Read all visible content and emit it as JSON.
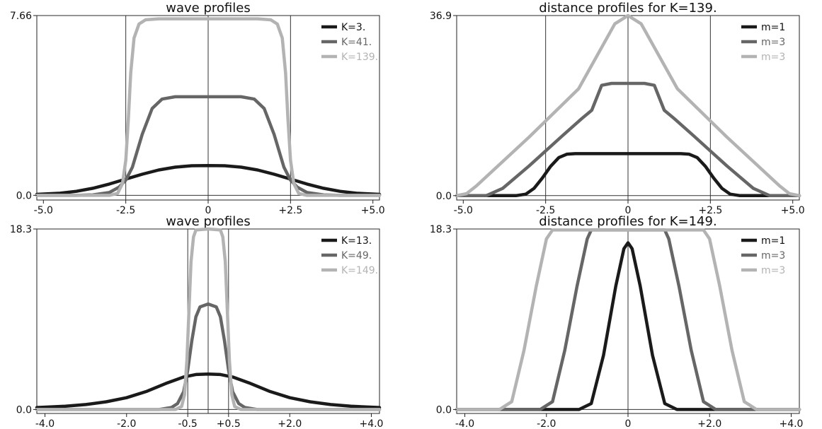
{
  "chart_data": [
    {
      "type": "line",
      "title": "wave profiles",
      "xlim": [
        -5.2,
        5.2
      ],
      "ylim": [
        -0.2,
        7.66
      ],
      "xticks": [
        -5.0,
        -2.5,
        0,
        2.5,
        5.0
      ],
      "xtick_labels": [
        "-5.0",
        "-2.5",
        "0",
        "+2.5",
        "+5.0"
      ],
      "yticks": [
        0.0,
        7.66
      ],
      "ytick_labels": [
        "0.0",
        "7.66"
      ],
      "vlines": [
        -2.5,
        0,
        2.5
      ],
      "legend_position": "top-right",
      "grid": false,
      "series": [
        {
          "name": "K=3.",
          "color": "#1a1a1a",
          "x": [
            -5.2,
            -4.5,
            -4.0,
            -3.5,
            -3.0,
            -2.5,
            -2.0,
            -1.5,
            -1.0,
            -0.5,
            0,
            0.5,
            1.0,
            1.5,
            2.0,
            2.5,
            3.0,
            3.5,
            4.0,
            4.5,
            5.2
          ],
          "y": [
            0.04,
            0.09,
            0.17,
            0.3,
            0.48,
            0.69,
            0.9,
            1.08,
            1.2,
            1.26,
            1.27,
            1.26,
            1.2,
            1.08,
            0.9,
            0.69,
            0.48,
            0.3,
            0.17,
            0.09,
            0.04
          ]
        },
        {
          "name": "K=41.",
          "color": "#666666",
          "x": [
            -5.2,
            -4.0,
            -3.5,
            -3.0,
            -2.7,
            -2.5,
            -2.3,
            -2.0,
            -1.7,
            -1.4,
            -1.0,
            0,
            1.0,
            1.4,
            1.7,
            2.0,
            2.3,
            2.5,
            2.7,
            3.0,
            3.5,
            4.0,
            5.2
          ],
          "y": [
            0.0,
            0.0,
            0.02,
            0.12,
            0.35,
            0.65,
            1.2,
            2.6,
            3.7,
            4.1,
            4.2,
            4.2,
            4.2,
            4.1,
            3.7,
            2.6,
            1.2,
            0.65,
            0.35,
            0.12,
            0.02,
            0.0,
            0.0
          ]
        },
        {
          "name": "K=139.",
          "color": "#b3b3b3",
          "x": [
            -5.2,
            -3.0,
            -2.75,
            -2.6,
            -2.5,
            -2.42,
            -2.35,
            -2.25,
            -2.1,
            -1.9,
            -1.5,
            0,
            1.5,
            1.9,
            2.1,
            2.25,
            2.35,
            2.42,
            2.5,
            2.6,
            2.75,
            3.0,
            5.2
          ],
          "y": [
            0.0,
            0.0,
            0.08,
            0.5,
            1.5,
            3.3,
            5.2,
            6.7,
            7.3,
            7.48,
            7.52,
            7.52,
            7.52,
            7.48,
            7.3,
            6.7,
            5.2,
            3.3,
            1.5,
            0.5,
            0.08,
            0.0,
            0.0
          ]
        }
      ]
    },
    {
      "type": "line",
      "title": "distance profiles for K=139.",
      "xlim": [
        -5.2,
        5.2
      ],
      "ylim": [
        -0.9,
        36.9
      ],
      "xticks": [
        -5.0,
        -2.5,
        0,
        2.5,
        5.0
      ],
      "xtick_labels": [
        "-5.0",
        "-2.5",
        "0",
        "+2.5",
        "+5.0"
      ],
      "yticks": [
        0.0,
        36.9
      ],
      "ytick_labels": [
        "0.0",
        "36.9"
      ],
      "vlines": [
        -2.5,
        0,
        2.5
      ],
      "legend_position": "top-right",
      "grid": false,
      "series": [
        {
          "name": "m=1",
          "color": "#1a1a1a",
          "x": [
            -5.2,
            -3.4,
            -3.1,
            -2.85,
            -2.6,
            -2.35,
            -2.1,
            -1.85,
            -1.6,
            0,
            1.6,
            1.85,
            2.1,
            2.35,
            2.6,
            2.85,
            3.1,
            3.4,
            5.2
          ],
          "y": [
            0.0,
            0.0,
            0.3,
            1.5,
            3.6,
            6.0,
            7.8,
            8.5,
            8.6,
            8.6,
            8.6,
            8.5,
            7.8,
            6.0,
            3.6,
            1.5,
            0.3,
            0.0,
            0.0
          ]
        },
        {
          "name": "m=3",
          "color": "#666666",
          "x": [
            -5.2,
            -4.3,
            -3.8,
            -3.0,
            -2.0,
            -1.4,
            -1.1,
            -0.8,
            -0.5,
            0,
            0.5,
            0.8,
            1.1,
            1.4,
            2.0,
            3.0,
            3.8,
            4.3,
            5.2
          ],
          "y": [
            0.0,
            0.0,
            1.5,
            6.1,
            12.2,
            15.8,
            17.5,
            22.6,
            23.0,
            23.0,
            23.0,
            22.6,
            17.5,
            15.8,
            12.2,
            6.1,
            1.5,
            0.0,
            0.0
          ]
        },
        {
          "name": "m=3",
          "color": "#b3b3b3",
          "x": [
            -5.2,
            -4.9,
            -4.6,
            -3.0,
            -1.5,
            -0.4,
            0,
            0.4,
            1.5,
            3.0,
            4.6,
            4.9,
            5.2
          ],
          "y": [
            0.0,
            0.4,
            2.0,
            12.0,
            21.9,
            35.2,
            36.9,
            35.2,
            21.9,
            12.0,
            2.0,
            0.4,
            0.0
          ]
        }
      ]
    },
    {
      "type": "line",
      "title": "wave profiles",
      "xlim": [
        -4.2,
        4.2
      ],
      "ylim": [
        -0.4,
        18.3
      ],
      "xticks": [
        -4.0,
        -2.0,
        -0.5,
        0.5,
        2.0,
        4.0
      ],
      "xtick_labels": [
        "-4.0",
        "-2.0",
        "-0.5",
        "+0.5",
        "+2.0",
        "+4.0"
      ],
      "yticks": [
        0.0,
        18.3
      ],
      "ytick_labels": [
        "0.0",
        "18.3"
      ],
      "vlines": [
        -0.5,
        0,
        0.5
      ],
      "legend_position": "top-right",
      "grid": false,
      "series": [
        {
          "name": "K=13.",
          "color": "#1a1a1a",
          "x": [
            -4.2,
            -3.5,
            -3.0,
            -2.5,
            -2.0,
            -1.5,
            -1.0,
            -0.6,
            -0.3,
            0,
            0.3,
            0.6,
            1.0,
            1.5,
            2.0,
            2.5,
            3.0,
            3.5,
            4.2
          ],
          "y": [
            0.2,
            0.33,
            0.5,
            0.78,
            1.2,
            1.85,
            2.7,
            3.3,
            3.55,
            3.6,
            3.55,
            3.3,
            2.7,
            1.85,
            1.2,
            0.78,
            0.5,
            0.33,
            0.2
          ]
        },
        {
          "name": "K=49.",
          "color": "#666666",
          "x": [
            -4.2,
            -1.2,
            -0.9,
            -0.75,
            -0.6,
            -0.5,
            -0.4,
            -0.3,
            -0.2,
            0,
            0.2,
            0.3,
            0.4,
            0.5,
            0.6,
            0.75,
            0.9,
            1.2,
            4.2
          ],
          "y": [
            0.0,
            0.0,
            0.2,
            0.6,
            1.8,
            4.0,
            7.0,
            9.4,
            10.4,
            10.7,
            10.4,
            9.4,
            7.0,
            4.0,
            1.8,
            0.6,
            0.2,
            0.0,
            0.0
          ]
        },
        {
          "name": "K=149.",
          "color": "#b3b3b3",
          "x": [
            -4.2,
            -0.8,
            -0.65,
            -0.58,
            -0.52,
            -0.47,
            -0.42,
            -0.36,
            -0.3,
            0,
            0.3,
            0.36,
            0.42,
            0.47,
            0.52,
            0.58,
            0.65,
            0.8,
            4.2
          ],
          "y": [
            0.0,
            0.0,
            0.3,
            1.5,
            5.0,
            10.0,
            15.0,
            17.5,
            18.2,
            18.3,
            18.2,
            17.5,
            15.0,
            10.0,
            5.0,
            1.5,
            0.3,
            0.0,
            0.0
          ]
        }
      ]
    },
    {
      "type": "line",
      "title": "distance profiles for K=149.",
      "xlim": [
        -4.2,
        4.2
      ],
      "ylim": [
        -0.4,
        18.3
      ],
      "xticks": [
        -4.0,
        -2.0,
        0,
        2.0,
        4.0
      ],
      "xtick_labels": [
        "-4.0",
        "-2.0",
        "0",
        "+2.0",
        "+4.0"
      ],
      "yticks": [
        0.0,
        18.3
      ],
      "ytick_labels": [
        "0.0",
        "18.3"
      ],
      "vlines": [
        0
      ],
      "legend_position": "top-right",
      "grid": false,
      "series": [
        {
          "name": "m=1",
          "color": "#1a1a1a",
          "x": [
            -4.2,
            -1.2,
            -0.9,
            -0.6,
            -0.3,
            -0.1,
            0,
            0.1,
            0.3,
            0.6,
            0.9,
            1.2,
            4.2
          ],
          "y": [
            0.0,
            0.0,
            0.6,
            5.5,
            12.5,
            16.3,
            16.9,
            16.3,
            12.5,
            5.5,
            0.6,
            0.0,
            0.0
          ]
        },
        {
          "name": "m=3",
          "color": "#666666",
          "x": [
            -4.2,
            -2.15,
            -1.85,
            -1.55,
            -1.25,
            -1.0,
            -0.9,
            0,
            0.9,
            1.0,
            1.25,
            1.55,
            1.85,
            2.15,
            4.2
          ],
          "y": [
            0.0,
            0.0,
            0.8,
            6.0,
            12.5,
            17.3,
            18.2,
            18.2,
            18.2,
            17.3,
            12.5,
            6.0,
            0.8,
            0.0,
            0.0
          ]
        },
        {
          "name": "m=3",
          "color": "#b3b3b3",
          "x": [
            -4.2,
            -3.15,
            -2.85,
            -2.55,
            -2.25,
            -2.0,
            -1.85,
            0,
            1.85,
            2.0,
            2.25,
            2.55,
            2.85,
            3.15,
            4.2
          ],
          "y": [
            0.0,
            0.0,
            0.8,
            6.0,
            12.5,
            17.3,
            18.2,
            18.2,
            18.2,
            17.3,
            12.5,
            6.0,
            0.8,
            0.0,
            0.0
          ]
        }
      ]
    }
  ]
}
